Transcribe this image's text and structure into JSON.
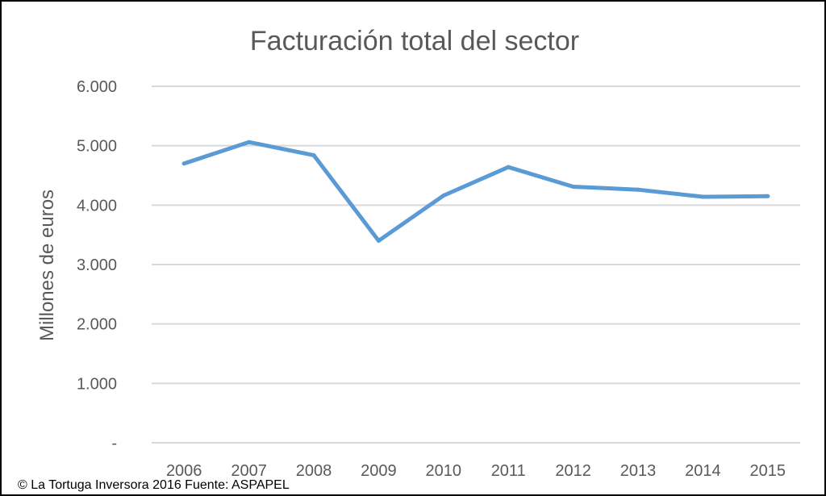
{
  "chart_data": {
    "type": "line",
    "title": "Facturación total del sector",
    "xlabel": "",
    "ylabel": "Millones de euros",
    "categories": [
      "2006",
      "2007",
      "2008",
      "2009",
      "2010",
      "2011",
      "2012",
      "2013",
      "2014",
      "2015"
    ],
    "series": [
      {
        "values": [
          4700,
          5060,
          4840,
          3400,
          4160,
          4640,
          4310,
          4260,
          4140,
          4150
        ]
      }
    ],
    "ylim": [
      0,
      6000
    ],
    "yticks": [
      {
        "value": 0,
        "label": "-"
      },
      {
        "value": 1000,
        "label": "1.000"
      },
      {
        "value": 2000,
        "label": "2.000"
      },
      {
        "value": 3000,
        "label": "3.000"
      },
      {
        "value": 4000,
        "label": "4.000"
      },
      {
        "value": 5000,
        "label": "5.000"
      },
      {
        "value": 6000,
        "label": "6.000"
      }
    ],
    "grid": true,
    "legend": "none",
    "line_color": "#5b9bd5",
    "grid_color": "#d9d9d9"
  },
  "footer": {
    "credit": "© La Tortuga Inversora 2016 Fuente: ASPAPEL"
  }
}
